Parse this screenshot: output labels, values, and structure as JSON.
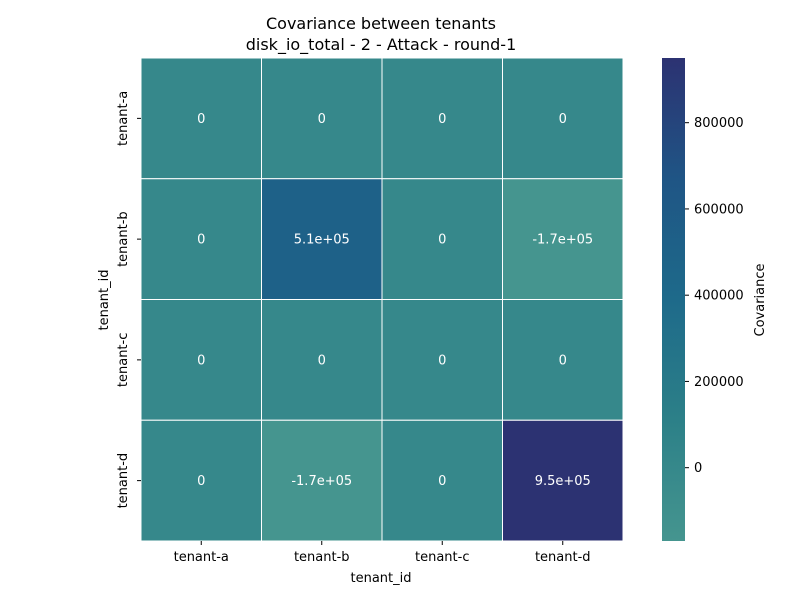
{
  "chart_data": {
    "type": "heatmap",
    "title": "Covariance between tenants",
    "subtitle": "disk_io_total - 2 - Attack - round-1",
    "xlabel": "tenant_id",
    "ylabel": "tenant_id",
    "x_categories": [
      "tenant-a",
      "tenant-b",
      "tenant-c",
      "tenant-d"
    ],
    "y_categories": [
      "tenant-a",
      "tenant-b",
      "tenant-c",
      "tenant-d"
    ],
    "values": [
      [
        0,
        0,
        0,
        0
      ],
      [
        0,
        510000,
        0,
        -170000
      ],
      [
        0,
        0,
        0,
        0
      ],
      [
        0,
        -170000,
        0,
        950000
      ]
    ],
    "annotations": [
      [
        "0",
        "0",
        "0",
        "0"
      ],
      [
        "0",
        "5.1e+05",
        "0",
        "-1.7e+05"
      ],
      [
        "0",
        "0",
        "0",
        "0"
      ],
      [
        "0",
        "-1.7e+05",
        "0",
        "9.5e+05"
      ]
    ],
    "colorbar": {
      "label": "Covariance",
      "range": [
        -170000,
        950000
      ],
      "ticks": [
        0,
        200000,
        400000,
        600000,
        800000
      ],
      "tick_labels": [
        "0",
        "200000",
        "400000",
        "600000",
        "800000"
      ],
      "colors": [
        "#45958f",
        "#2c8088",
        "#1e6a8a",
        "#1f5585",
        "#2c3272"
      ]
    },
    "grid": false,
    "legend": "right"
  }
}
